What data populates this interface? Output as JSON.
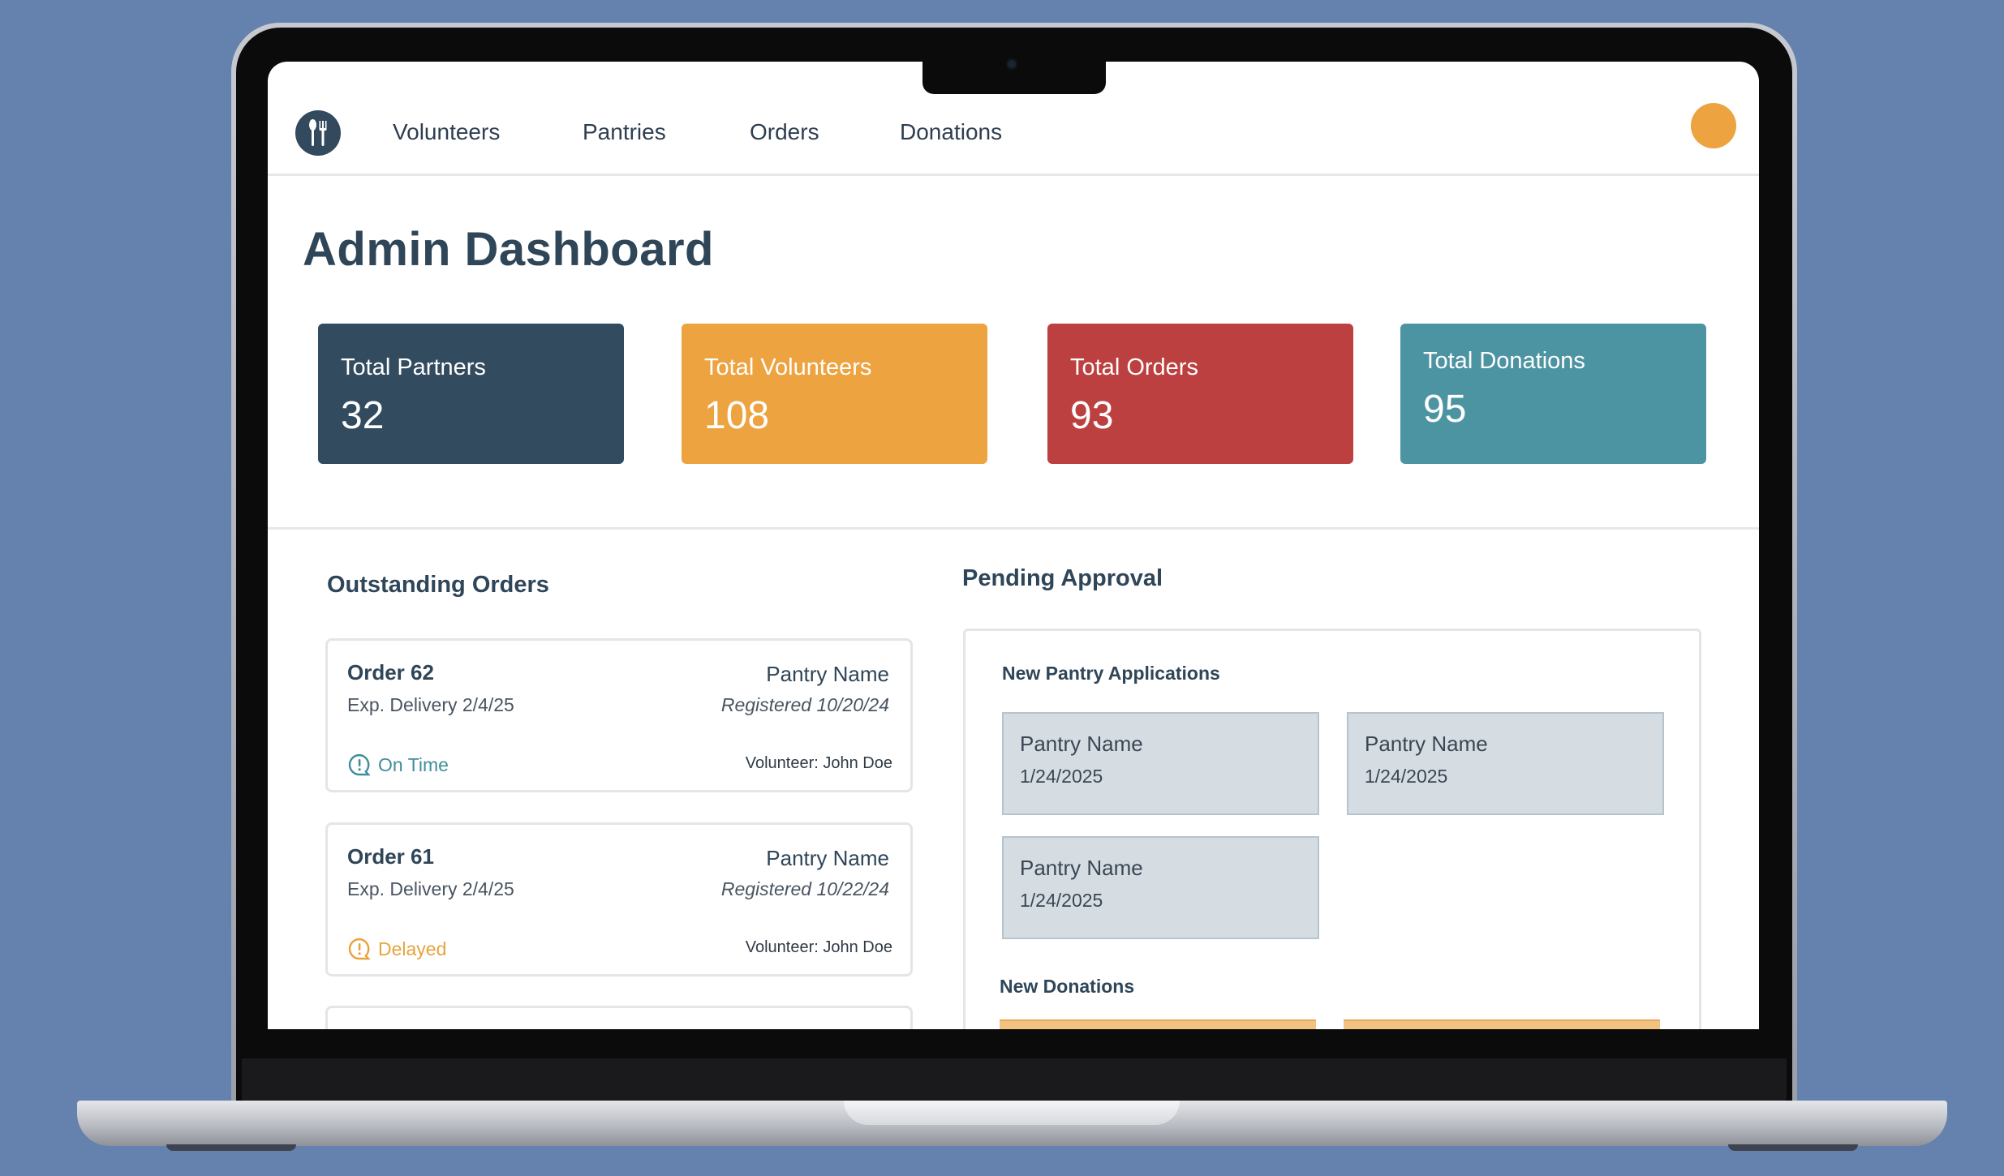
{
  "nav": {
    "items": [
      {
        "label": "Volunteers"
      },
      {
        "label": "Pantries"
      },
      {
        "label": "Orders"
      },
      {
        "label": "Donations"
      }
    ],
    "logo_icon": "fork-spoon-icon",
    "avatar_color": "#eda33f"
  },
  "page": {
    "title": "Admin Dashboard"
  },
  "stats": [
    {
      "label": "Total Partners",
      "value": "32",
      "color": "#334b5f"
    },
    {
      "label": "Total Volunteers",
      "value": "108",
      "color": "#eda33f"
    },
    {
      "label": "Total Orders",
      "value": "93",
      "color": "#bd4040"
    },
    {
      "label": "Total Donations",
      "value": "95",
      "color": "#4d94a3"
    }
  ],
  "outstanding": {
    "title": "Outstanding Orders",
    "orders": [
      {
        "name": "Order 62",
        "delivery": "Exp. Delivery 2/4/25",
        "pantry": "Pantry Name",
        "registered": "Registered 10/20/24",
        "status": "On Time",
        "status_color": "#3f8e9c",
        "volunteer": "Volunteer: John Doe"
      },
      {
        "name": "Order 61",
        "delivery": "Exp. Delivery 2/4/25",
        "pantry": "Pantry Name",
        "registered": "Registered 10/22/24",
        "status": "Delayed",
        "status_color": "#e8a33c",
        "volunteer": "Volunteer: John Doe"
      }
    ]
  },
  "pending": {
    "title": "Pending Approval",
    "applications_title": "New Pantry Applications",
    "applications": [
      {
        "name": "Pantry Name",
        "date": "1/24/2025"
      },
      {
        "name": "Pantry Name",
        "date": "1/24/2025"
      },
      {
        "name": "Pantry Name",
        "date": "1/24/2025"
      }
    ],
    "donations_title": "New Donations"
  }
}
